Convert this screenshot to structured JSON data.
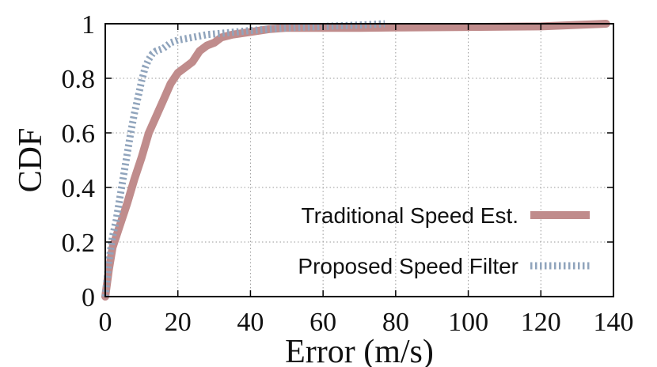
{
  "chart_data": {
    "type": "line",
    "xlabel": "Error (m/s)",
    "ylabel": "CDF",
    "xlim": [
      0,
      140
    ],
    "ylim": [
      0,
      1
    ],
    "x_ticks": [
      "0",
      "20",
      "40",
      "60",
      "80",
      "100",
      "120",
      "140"
    ],
    "y_ticks": [
      "0",
      "0.2",
      "0.4",
      "0.6",
      "0.8",
      "1"
    ],
    "x_tick_values": [
      0,
      20,
      40,
      60,
      80,
      100,
      120,
      140
    ],
    "y_tick_values": [
      0,
      0.2,
      0.4,
      0.6,
      0.8,
      1
    ],
    "grid": true,
    "legend_position": "bottom-right",
    "series": [
      {
        "name": "Traditional Speed Est.",
        "color": "#c08c8c",
        "style": "solid",
        "x": [
          0,
          1,
          2,
          4,
          6,
          8,
          10,
          12,
          14,
          16,
          18,
          20,
          22,
          24,
          26,
          28,
          30,
          32,
          35,
          40,
          45,
          50,
          60,
          70,
          80,
          100,
          120,
          138
        ],
        "y": [
          0,
          0.1,
          0.18,
          0.26,
          0.34,
          0.43,
          0.51,
          0.6,
          0.66,
          0.72,
          0.78,
          0.82,
          0.84,
          0.86,
          0.9,
          0.92,
          0.93,
          0.95,
          0.96,
          0.97,
          0.98,
          0.985,
          0.985,
          0.985,
          0.986,
          0.988,
          0.99,
          1
        ]
      },
      {
        "name": "Proposed Speed Filter",
        "color": "#90a4bc",
        "style": "dashed",
        "x": [
          0,
          1,
          2,
          3,
          4,
          5,
          6,
          7,
          8,
          9,
          10,
          11,
          12,
          13,
          14,
          16,
          18,
          20,
          24,
          28,
          32,
          36,
          40,
          50,
          60,
          70,
          77
        ],
        "y": [
          0,
          0.13,
          0.22,
          0.28,
          0.36,
          0.44,
          0.52,
          0.6,
          0.67,
          0.73,
          0.79,
          0.84,
          0.87,
          0.89,
          0.9,
          0.91,
          0.93,
          0.94,
          0.95,
          0.96,
          0.965,
          0.97,
          0.975,
          0.985,
          0.99,
          0.995,
          1
        ]
      }
    ]
  }
}
